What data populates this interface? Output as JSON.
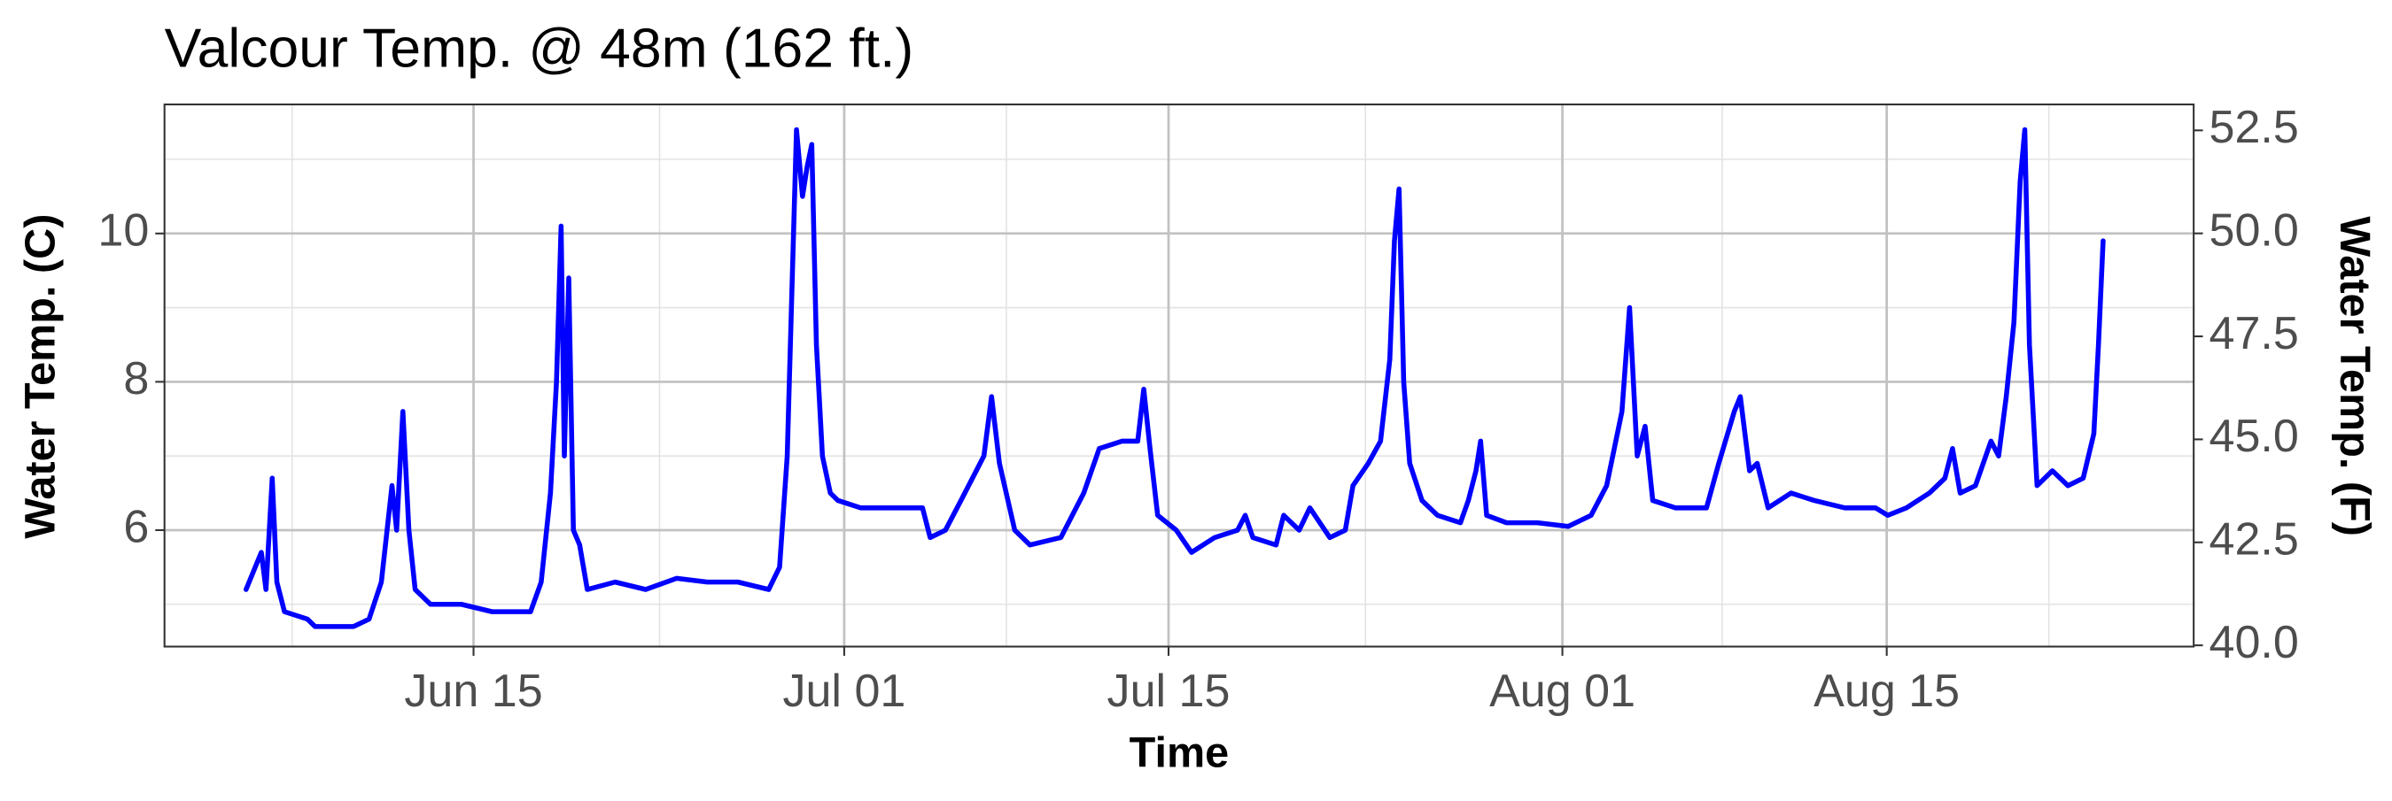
{
  "chart_data": {
    "type": "line",
    "title": "Valcour Temp. @ 48m (162 ft.)",
    "x_label": "Time",
    "y_label": "Water Temp. (C)",
    "y2_label": "Water Temp. (F)",
    "color": "#0000ff",
    "grid": true,
    "xlim": [
      152.66,
      240.25
    ],
    "xticks": [
      {
        "value": 166,
        "label": "Jun 15"
      },
      {
        "value": 182,
        "label": "Jul 01"
      },
      {
        "value": 196,
        "label": "Jul 15"
      },
      {
        "value": 213,
        "label": "Aug 01"
      },
      {
        "value": 227,
        "label": "Aug 15"
      }
    ],
    "x_minor_ticks": [
      158.17,
      174.03,
      189.0,
      204.5,
      219.9,
      234.0
    ],
    "ylim": [
      4.43,
      11.74
    ],
    "yticks": [
      6,
      8,
      10
    ],
    "y_minor_ticks": [
      5,
      7,
      9,
      11
    ],
    "y2lim": [
      39.97,
      53.13
    ],
    "y2ticks": [
      {
        "value": 40,
        "label": "40.0"
      },
      42.5,
      {
        "value": 45,
        "label": "45.0"
      },
      47.5,
      {
        "value": 50,
        "label": "50.0"
      },
      52.5
    ],
    "x": [
      156.18,
      156.84,
      157.04,
      157.31,
      157.51,
      157.84,
      158.83,
      159.16,
      160.82,
      161.49,
      162.02,
      162.48,
      162.68,
      162.95,
      163.21,
      163.48,
      164.14,
      165.47,
      166.8,
      168.46,
      168.92,
      169.32,
      169.58,
      169.78,
      169.92,
      170.11,
      170.31,
      170.58,
      170.91,
      172.11,
      173.43,
      174.76,
      176.09,
      177.41,
      178.74,
      179.21,
      179.54,
      179.74,
      179.94,
      180.2,
      180.4,
      180.6,
      180.8,
      181.06,
      181.4,
      181.73,
      182.72,
      185.38,
      185.71,
      186.37,
      187.04,
      187.7,
      188.03,
      188.36,
      188.7,
      189.36,
      190.02,
      191.35,
      192.34,
      193.01,
      194.0,
      194.67,
      194.93,
      195.2,
      195.53,
      196.33,
      196.99,
      197.99,
      198.98,
      199.31,
      199.64,
      200.64,
      200.97,
      201.64,
      202.1,
      202.96,
      203.63,
      203.96,
      204.62,
      205.15,
      205.55,
      205.75,
      205.95,
      206.15,
      206.41,
      206.94,
      207.61,
      208.6,
      208.94,
      209.27,
      209.47,
      209.73,
      210.59,
      211.92,
      213.25,
      214.24,
      214.91,
      215.57,
      215.9,
      216.23,
      216.57,
      216.9,
      217.89,
      219.22,
      219.75,
      220.42,
      220.68,
      221.08,
      221.41,
      221.88,
      222.87,
      223.87,
      225.19,
      226.52,
      227.05,
      227.85,
      228.84,
      229.51,
      229.84,
      230.17,
      230.83,
      231.5,
      231.83,
      232.16,
      232.49,
      232.76,
      232.96,
      233.16,
      233.49,
      234.15,
      234.82,
      235.48,
      235.94,
      236.14,
      236.34
    ],
    "values": [
      5.2,
      5.7,
      5.2,
      6.7,
      5.3,
      4.9,
      4.8,
      4.7,
      4.7,
      4.8,
      5.3,
      6.6,
      6.0,
      7.6,
      6.0,
      5.2,
      5.0,
      5.0,
      4.9,
      4.9,
      5.3,
      6.5,
      8.0,
      10.1,
      7.0,
      9.4,
      6.0,
      5.8,
      5.2,
      5.3,
      5.2,
      5.35,
      5.3,
      5.3,
      5.2,
      5.5,
      7.0,
      9.2,
      11.4,
      10.5,
      10.9,
      11.2,
      8.5,
      7.0,
      6.5,
      6.4,
      6.3,
      6.3,
      5.9,
      6.0,
      6.4,
      6.8,
      7.0,
      7.8,
      6.9,
      6.0,
      5.8,
      5.9,
      6.5,
      7.1,
      7.2,
      7.2,
      7.9,
      7.1,
      6.2,
      6.0,
      5.7,
      5.9,
      6.0,
      6.2,
      5.9,
      5.8,
      6.2,
      6.0,
      6.3,
      5.9,
      6.0,
      6.6,
      6.9,
      7.2,
      8.3,
      9.9,
      10.6,
      8.0,
      6.9,
      6.4,
      6.2,
      6.1,
      6.4,
      6.8,
      7.2,
      6.2,
      6.1,
      6.1,
      6.05,
      6.2,
      6.6,
      7.6,
      9.0,
      7.0,
      7.4,
      6.4,
      6.3,
      6.3,
      6.9,
      7.6,
      7.8,
      6.8,
      6.9,
      6.3,
      6.5,
      6.4,
      6.3,
      6.3,
      6.2,
      6.3,
      6.5,
      6.7,
      7.1,
      6.5,
      6.6,
      7.2,
      7.0,
      7.8,
      8.8,
      10.7,
      11.4,
      8.5,
      6.6,
      6.8,
      6.6,
      6.7,
      7.3,
      8.5,
      9.9
    ]
  }
}
